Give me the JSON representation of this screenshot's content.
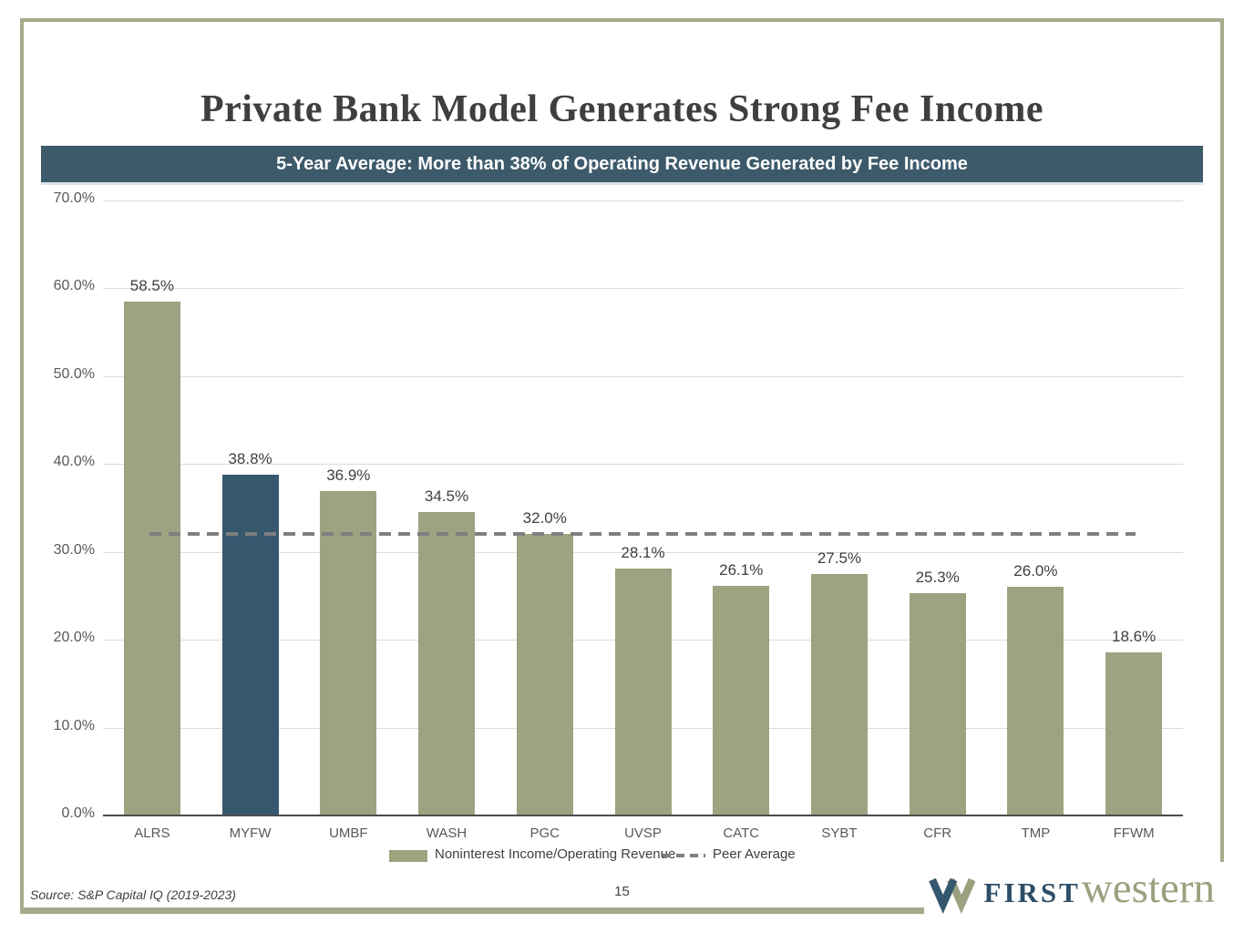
{
  "slide": {
    "title": "Private Bank Model Generates Strong Fee Income",
    "banner_text": "5-Year Average: More than 38% of Operating Revenue Generated by Fee Income",
    "source_note": "Source: S&P Capital IQ (2019-2023)",
    "page_number": "15",
    "logo": {
      "word_first": "FIRST",
      "word_western": "western",
      "icon": "w-monogram-icon"
    }
  },
  "colors": {
    "frame": "#a5ab8c",
    "banner_bg": "#3d5a6b",
    "bar": "#9da381",
    "bar_highlight": "#36586e",
    "peer_line": "#7f7f7f",
    "grid": "#dcdcdc",
    "axis": "#4d4d4d",
    "tick_text": "#595959",
    "label_text": "#3f3f3f",
    "logo_blue": "#2e4d66",
    "logo_olive": "#9ba17f"
  },
  "chart_data": {
    "type": "bar",
    "title": "5-Year Average: More than 38% of Operating Revenue Generated by Fee Income",
    "categories": [
      "ALRS",
      "MYFW",
      "UMBF",
      "WASH",
      "PGC",
      "UVSP",
      "CATC",
      "SYBT",
      "CFR",
      "TMP",
      "FFWM"
    ],
    "values": [
      58.5,
      38.8,
      36.9,
      34.5,
      32.0,
      28.1,
      26.1,
      27.5,
      25.3,
      26.0,
      18.6
    ],
    "value_labels": [
      "58.5%",
      "38.8%",
      "36.9%",
      "34.5%",
      "32.0%",
      "28.1%",
      "26.1%",
      "27.5%",
      "25.3%",
      "26.0%",
      "18.6%"
    ],
    "highlight_category": "MYFW",
    "series_name": "Noninterest Income/Operating Revenue",
    "peer_average": {
      "label": "Peer Average",
      "value": 32.0
    },
    "xlabel": "",
    "ylabel": "",
    "ylim": [
      0,
      70
    ],
    "ytick_step": 10,
    "ytick_labels": [
      "0.0%",
      "10.0%",
      "20.0%",
      "30.0%",
      "40.0%",
      "50.0%",
      "60.0%",
      "70.0%"
    ],
    "grid": true,
    "legend_position": "bottom"
  }
}
